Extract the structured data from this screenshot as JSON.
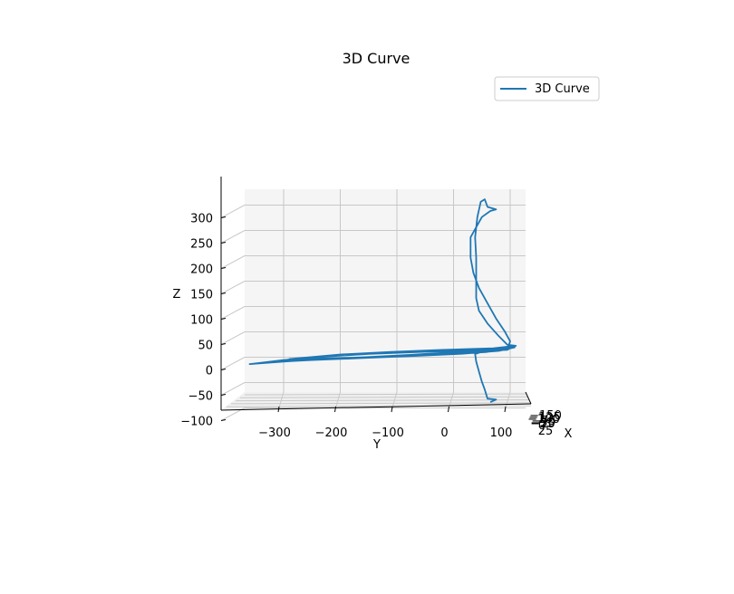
{
  "chart_data": {
    "type": "line",
    "projection": "3d",
    "view": "side view looking along the X axis (Y horizontal, Z vertical)",
    "title": "3D Curve",
    "xlabel": "X",
    "ylabel": "Y",
    "zlabel": "Z",
    "ylim": [
      -380,
      130
    ],
    "zlim": [
      -100,
      340
    ],
    "y_ticks": [
      "−300",
      "−200",
      "−100",
      "0",
      "100"
    ],
    "z_ticks": [
      "−100",
      "−50",
      "0",
      "50",
      "100",
      "150",
      "200",
      "250",
      "300"
    ],
    "x_ticks": [
      "−150",
      "−125",
      "−100",
      "−75",
      "−50",
      "−25",
      "0",
      "25"
    ],
    "grid": true,
    "legend": {
      "position": "top-right",
      "entries": [
        "3D Curve"
      ]
    },
    "series": [
      {
        "name": "3D Curve",
        "color": "#1f77b4",
        "points_yz": [
          [
            65,
            -85
          ],
          [
            75,
            -80
          ],
          [
            60,
            -78
          ],
          [
            55,
            -60
          ],
          [
            50,
            -45
          ],
          [
            45,
            -25
          ],
          [
            40,
            -5
          ],
          [
            38,
            10
          ],
          [
            70,
            20
          ],
          [
            105,
            25
          ],
          [
            95,
            18
          ],
          [
            30,
            15
          ],
          [
            -20,
            12
          ],
          [
            -80,
            8
          ],
          [
            -150,
            4
          ],
          [
            -230,
            0
          ],
          [
            -300,
            -5
          ],
          [
            -360,
            -10
          ],
          [
            -300,
            -2
          ],
          [
            -220,
            6
          ],
          [
            -140,
            12
          ],
          [
            -60,
            16
          ],
          [
            20,
            18
          ],
          [
            90,
            20
          ],
          [
            108,
            23
          ],
          [
            80,
            16
          ],
          [
            10,
            10
          ],
          [
            -70,
            6
          ],
          [
            -160,
            2
          ],
          [
            -250,
            -2
          ],
          [
            -320,
            -6
          ],
          [
            -240,
            4
          ],
          [
            -150,
            10
          ],
          [
            -60,
            14
          ],
          [
            30,
            17
          ],
          [
            100,
            22
          ],
          [
            60,
            14
          ],
          [
            -20,
            9
          ],
          [
            -110,
            5
          ],
          [
            -200,
            2
          ],
          [
            -290,
            0
          ],
          [
            -200,
            9
          ],
          [
            -110,
            14
          ],
          [
            -20,
            18
          ],
          [
            70,
            21
          ],
          [
            110,
            26
          ],
          [
            95,
            28
          ],
          [
            80,
            45
          ],
          [
            60,
            70
          ],
          [
            45,
            95
          ],
          [
            40,
            120
          ],
          [
            40,
            160
          ],
          [
            40,
            200
          ],
          [
            38,
            240
          ],
          [
            42,
            280
          ],
          [
            48,
            310
          ],
          [
            55,
            315
          ],
          [
            60,
            300
          ],
          [
            75,
            295
          ],
          [
            65,
            292
          ],
          [
            50,
            280
          ],
          [
            40,
            260
          ],
          [
            30,
            240
          ],
          [
            30,
            200
          ],
          [
            35,
            170
          ],
          [
            45,
            140
          ],
          [
            60,
            110
          ],
          [
            75,
            80
          ],
          [
            90,
            55
          ],
          [
            100,
            35
          ],
          [
            95,
            20
          ]
        ]
      }
    ]
  }
}
